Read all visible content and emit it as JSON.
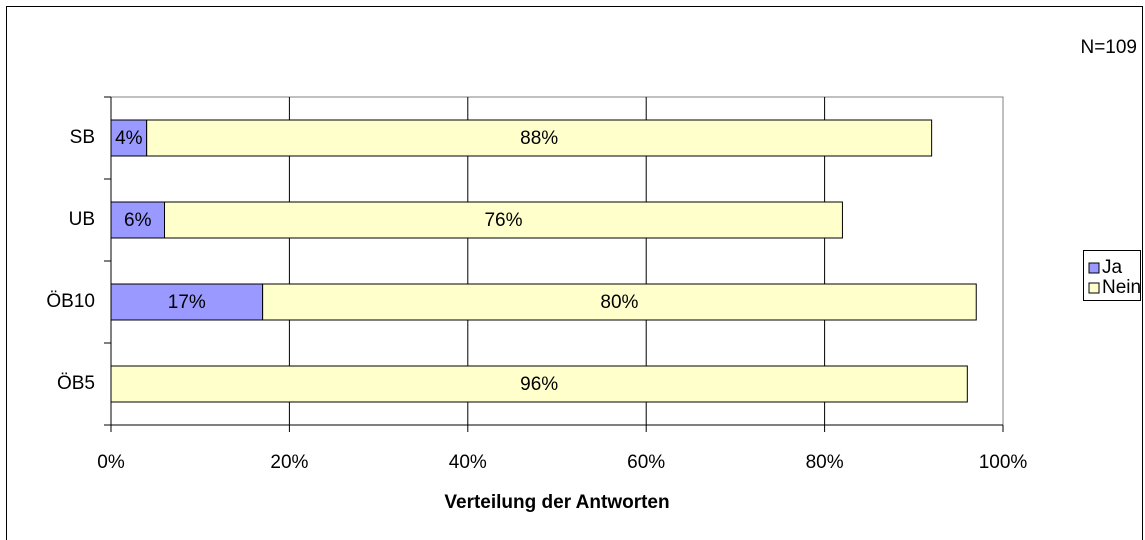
{
  "chart_data": {
    "type": "stacked-barh",
    "annotation": "N=109",
    "x_label": "Verteilung der Antworten",
    "categories": [
      "SB",
      "UB",
      "ÖB10",
      "ÖB5"
    ],
    "series": [
      {
        "name": "Ja",
        "color": "#9999ff",
        "values": [
          4,
          6,
          17,
          null
        ],
        "value_labels": [
          "4%",
          "6%",
          "17%",
          null
        ]
      },
      {
        "name": "Nein",
        "color": "#ffffcc",
        "values": [
          88,
          76,
          80,
          96
        ],
        "value_labels": [
          "88%",
          "76%",
          "80%",
          "96%"
        ]
      }
    ],
    "xlim": [
      0,
      100
    ],
    "xticks": [
      {
        "value": 0,
        "label": "0%"
      },
      {
        "value": 20,
        "label": "20%"
      },
      {
        "value": 40,
        "label": "40%"
      },
      {
        "value": 60,
        "label": "60%"
      },
      {
        "value": 80,
        "label": "80%"
      },
      {
        "value": 100,
        "label": "100%"
      }
    ],
    "grid": true,
    "legend": "right"
  }
}
